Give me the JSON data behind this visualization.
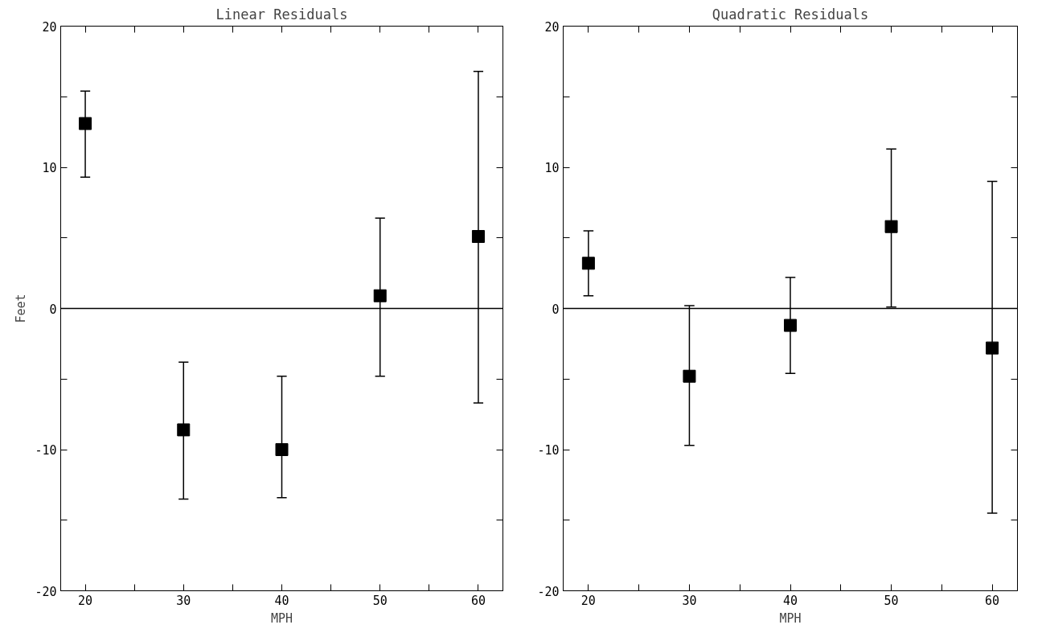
{
  "chart_data": [
    {
      "type": "scatter",
      "title": "Linear Residuals",
      "xlabel": "MPH",
      "ylabel": "Feet",
      "marker": "square",
      "color": "#000000",
      "x": [
        20,
        30,
        40,
        50,
        60
      ],
      "values": [
        13.1,
        -8.6,
        -10.0,
        0.9,
        5.1
      ],
      "errors": [
        [
          9.3,
          15.4
        ],
        [
          -13.5,
          -3.8
        ],
        [
          -13.4,
          -4.8
        ],
        [
          -4.8,
          6.4
        ],
        [
          -6.7,
          16.8
        ]
      ],
      "xlim": [
        17.5,
        62.5
      ],
      "ylim": [
        -20,
        20
      ],
      "xticks": [
        20,
        {
          "value": 25,
          "label": null
        },
        30,
        {
          "value": 35,
          "label": null
        },
        40,
        {
          "value": 45,
          "label": null
        },
        50,
        {
          "value": 55,
          "label": null
        },
        60
      ],
      "yticks": [
        -20,
        {
          "value": -15,
          "label": null
        },
        -10,
        {
          "value": -5,
          "label": null
        },
        0,
        {
          "value": 5,
          "label": null
        },
        10,
        {
          "value": 15,
          "label": null
        },
        20
      ],
      "ref_lines": [
        {
          "axis": "y",
          "value": 0,
          "label": null
        }
      ]
    },
    {
      "type": "scatter",
      "title": "Quadratic Residuals",
      "xlabel": "MPH",
      "marker": "square",
      "color": "#000000",
      "x": [
        20,
        30,
        40,
        50,
        60
      ],
      "values": [
        3.2,
        -4.8,
        -1.2,
        5.8,
        -2.8
      ],
      "errors": [
        [
          0.9,
          5.5
        ],
        [
          -9.7,
          0.2
        ],
        [
          -4.6,
          2.2
        ],
        [
          0.1,
          11.3
        ],
        [
          -14.5,
          9.0
        ]
      ],
      "xlim": [
        17.5,
        62.5
      ],
      "ylim": [
        -20,
        20
      ],
      "xticks": [
        20,
        {
          "value": 25,
          "label": null
        },
        30,
        {
          "value": 35,
          "label": null
        },
        40,
        {
          "value": 45,
          "label": null
        },
        50,
        {
          "value": 55,
          "label": null
        },
        60
      ],
      "yticks": [
        -20,
        {
          "value": -15,
          "label": null
        },
        -10,
        {
          "value": -5,
          "label": null
        },
        0,
        {
          "value": 5,
          "label": null
        },
        10,
        {
          "value": 15,
          "label": null
        },
        20
      ],
      "ref_lines": [
        {
          "axis": "y",
          "value": 0,
          "label": null
        }
      ]
    }
  ]
}
